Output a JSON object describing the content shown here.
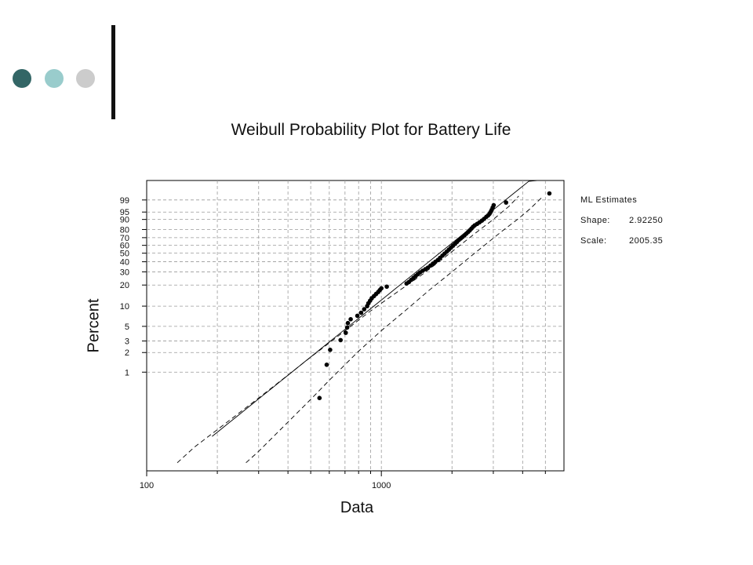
{
  "decor": {
    "dot_colors": [
      "#336666",
      "#99CCCC",
      "#CCCCCC"
    ],
    "bar_color": "#111111"
  },
  "legend": {
    "heading": "ML Estimates",
    "rows": [
      {
        "key": "Shape:",
        "value": "2.92250"
      },
      {
        "key": "Scale:",
        "value": "2005.35"
      }
    ]
  },
  "chart_data": {
    "type": "scatter",
    "title": "Weibull Probability Plot for Battery Life",
    "xlabel": "Data",
    "ylabel": "Percent",
    "x_scale": "log",
    "y_scale": "weibull",
    "xlim": [
      100,
      6000
    ],
    "ylim": [
      0.03,
      99.99
    ],
    "x_tick_labels": [
      {
        "value": 100,
        "label": "100"
      },
      {
        "value": 1000,
        "label": "1000"
      }
    ],
    "x_minor_ticks": [
      200,
      300,
      400,
      500,
      600,
      700,
      800,
      900,
      2000,
      3000,
      4000,
      5000
    ],
    "y_ticks": [
      1,
      2,
      3,
      5,
      10,
      20,
      30,
      40,
      50,
      60,
      70,
      80,
      90,
      95,
      99
    ],
    "grid": true,
    "estimates": {
      "shape": 2.9225,
      "scale": 2005.35
    },
    "fit_line": {
      "x": [
        190,
        5000
      ]
    },
    "ci_upper": [
      [
        135,
        0.04
      ],
      [
        160,
        0.07
      ],
      [
        200,
        0.13
      ],
      [
        300,
        0.4
      ],
      [
        400,
        0.9
      ],
      [
        500,
        1.7
      ],
      [
        600,
        2.8
      ],
      [
        700,
        4.3
      ],
      [
        900,
        8.5
      ],
      [
        1200,
        17
      ],
      [
        1500,
        28
      ],
      [
        1800,
        42
      ],
      [
        2100,
        57
      ],
      [
        2500,
        75
      ],
      [
        3000,
        90
      ],
      [
        3500,
        97.5
      ],
      [
        3850,
        99.5
      ]
    ],
    "ci_lower": [
      [
        265,
        0.04
      ],
      [
        300,
        0.06
      ],
      [
        400,
        0.17
      ],
      [
        500,
        0.38
      ],
      [
        600,
        0.75
      ],
      [
        700,
        1.3
      ],
      [
        800,
        2.1
      ],
      [
        1000,
        4.3
      ],
      [
        1300,
        9.3
      ],
      [
        1600,
        17
      ],
      [
        2000,
        30
      ],
      [
        2400,
        46
      ],
      [
        2800,
        62
      ],
      [
        3300,
        79
      ],
      [
        3800,
        90
      ],
      [
        4300,
        96.5
      ],
      [
        4850,
        99.4
      ]
    ],
    "points": {
      "x": [
        545,
        585,
        605,
        670,
        705,
        715,
        720,
        740,
        790,
        820,
        845,
        870,
        880,
        895,
        910,
        930,
        950,
        970,
        985,
        1000,
        1055,
        1280,
        1310,
        1340,
        1370,
        1400,
        1430,
        1460,
        1500,
        1540,
        1580,
        1620,
        1660,
        1700,
        1740,
        1780,
        1820,
        1860,
        1900,
        1940,
        1980,
        2020,
        2060,
        2100,
        2140,
        2180,
        2220,
        2260,
        2300,
        2340,
        2380,
        2420,
        2460,
        2500,
        2560,
        2620,
        2680,
        2740,
        2800,
        2850,
        2890,
        2920,
        2950,
        2980,
        3010,
        3400,
        5200
      ],
      "y": [
        0.4,
        1.3,
        2.2,
        3.1,
        4.0,
        4.8,
        5.6,
        6.4,
        7.2,
        8.0,
        9.0,
        10.0,
        11.0,
        12.0,
        13.0,
        14.0,
        15.0,
        16.0,
        17.0,
        18.0,
        19.0,
        21.0,
        22.0,
        23.5,
        25.0,
        26.5,
        28.0,
        29.5,
        31.0,
        32.5,
        34.0,
        36.0,
        38.0,
        40.0,
        42.0,
        44.5,
        47.0,
        49.5,
        52.0,
        54.5,
        57.0,
        59.5,
        62.0,
        64.5,
        67.0,
        69.0,
        71.0,
        73.0,
        75.0,
        77.0,
        79.0,
        81.0,
        83.0,
        84.5,
        86.0,
        87.5,
        89.0,
        90.5,
        92.0,
        93.0,
        94.0,
        95.0,
        96.0,
        97.0,
        97.8,
        98.5,
        99.7
      ]
    }
  }
}
